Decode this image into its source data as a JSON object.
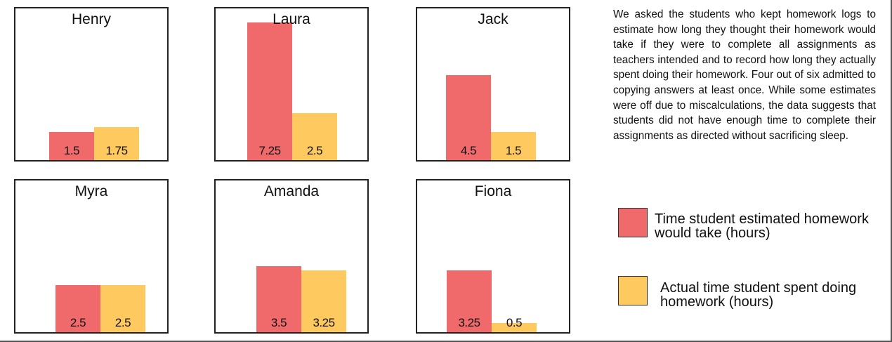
{
  "description": "We asked the students who kept homework logs to estimate how long they thought their homework would take if they were to complete all assignments as teachers intended and to record how long they actually spent doing their homework. Four out of six admitted to copying answers at least once. While some estimates were off due to miscalculations, the data suggests that students did not have enough time to complete their assignments as directed without sacrificing sleep.",
  "legend": [
    {
      "name": "Time student estimated homework would take (hours)",
      "color": "#f06a6c"
    },
    {
      "name": "Actual time student spent doing homework (hours)",
      "color": "#fec95f"
    }
  ],
  "chart_data": [
    {
      "type": "bar",
      "title": "Henry",
      "values": [
        1.5,
        1.75
      ],
      "ylim": [
        0,
        8
      ]
    },
    {
      "type": "bar",
      "title": "Laura",
      "values": [
        7.25,
        2.5
      ],
      "ylim": [
        0,
        8
      ]
    },
    {
      "type": "bar",
      "title": "Jack",
      "values": [
        4.5,
        1.5
      ],
      "ylim": [
        0,
        8
      ]
    },
    {
      "type": "bar",
      "title": "Myra",
      "values": [
        2.5,
        2.5
      ],
      "ylim": [
        0,
        8
      ]
    },
    {
      "type": "bar",
      "title": "Amanda",
      "values": [
        3.5,
        3.25
      ],
      "ylim": [
        0,
        8
      ]
    },
    {
      "type": "bar",
      "title": "Fiona",
      "values": [
        3.25,
        0.5
      ],
      "ylim": [
        0,
        8
      ]
    }
  ]
}
